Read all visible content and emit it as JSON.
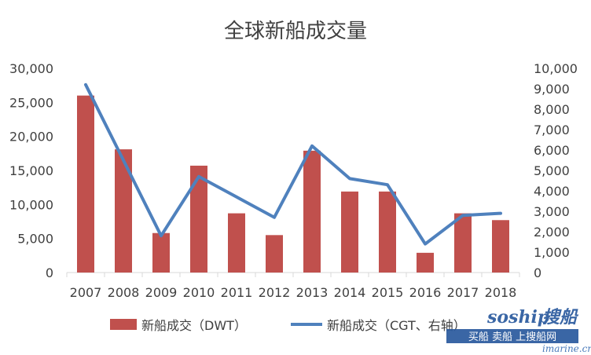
{
  "chart_data": {
    "type": "bar",
    "title": "全球新船成交量",
    "categories": [
      "2007",
      "2008",
      "2009",
      "2010",
      "2011",
      "2012",
      "2013",
      "2014",
      "2015",
      "2016",
      "2017",
      "2018"
    ],
    "series": [
      {
        "name": "新船成交（DWT）",
        "type": "bar",
        "axis": "left",
        "color": "#c0504d",
        "values": [
          26000,
          18100,
          5800,
          15700,
          8700,
          5500,
          17900,
          11900,
          11900,
          2900,
          8700,
          7700
        ]
      },
      {
        "name": "新船成交（CGT、右轴）",
        "type": "line",
        "axis": "right",
        "color": "#4f81bd",
        "values": [
          9200,
          5500,
          1800,
          4700,
          3700,
          2700,
          6200,
          4600,
          4300,
          1400,
          2800,
          2900
        ]
      }
    ],
    "y_left": {
      "min": 0,
      "max": 30000,
      "step": 5000,
      "ticks": [
        "0",
        "5,000",
        "10,000",
        "15,000",
        "20,000",
        "25,000",
        "30,000"
      ]
    },
    "y_right": {
      "min": 0,
      "max": 10000,
      "step": 1000,
      "ticks": [
        "0",
        "1,000",
        "2,000",
        "3,000",
        "4,000",
        "5,000",
        "6,000",
        "7,000",
        "8,000",
        "9,000",
        "10,000"
      ]
    },
    "grid": false,
    "legend_position": "bottom"
  },
  "watermark": {
    "brand": "soship",
    "brand_cn": "搜船",
    "tagline": "买船 卖船 上搜船网",
    "url": "imarine.cn"
  }
}
